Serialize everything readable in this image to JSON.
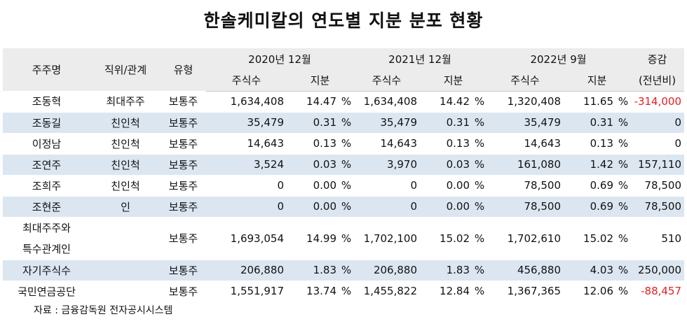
{
  "title": "한솔케미칼의 연도별 지분 분포 현황",
  "headers": {
    "shareholder": "주주명",
    "position": "직위/관계",
    "type": "유형",
    "period_2020": "2020년 12월",
    "period_2021": "2021년 12월",
    "period_2022": "2022년 9월",
    "change_line1": "증감",
    "change_line2": "(전년비)",
    "shares": "주식수",
    "stake": "지분"
  },
  "rows": [
    {
      "name": "조동혁",
      "position": "최대주주",
      "type": "보통주",
      "s2020": "1,634,408",
      "p2020": "14.47",
      "u2020": "%",
      "s2021": "1,634,408",
      "p2021": "14.42",
      "u2021": "%",
      "s2022": "1,320,408",
      "p2022": "11.65",
      "u2022": "%",
      "change": "-314,000"
    },
    {
      "name": "조동길",
      "position": "친인척",
      "type": "보통주",
      "s2020": "35,479",
      "p2020": "0.31",
      "u2020": "%",
      "s2021": "35,479",
      "p2021": "0.31",
      "u2021": "%",
      "s2022": "35,479",
      "p2022": "0.31",
      "u2022": "%",
      "change": "0"
    },
    {
      "name": "이정남",
      "position": "친인척",
      "type": "보통주",
      "s2020": "14,643",
      "p2020": "0.13",
      "u2020": "%",
      "s2021": "14,643",
      "p2021": "0.13",
      "u2021": "%",
      "s2022": "14,643",
      "p2022": "0.13",
      "u2022": "%",
      "change": "0"
    },
    {
      "name": "조연주",
      "position": "친인척",
      "type": "보통주",
      "s2020": "3,524",
      "p2020": "0.03",
      "u2020": "%",
      "s2021": "3,970",
      "p2021": "0.03",
      "u2021": "%",
      "s2022": "161,080",
      "p2022": "1.42",
      "u2022": "%",
      "change": "157,110"
    },
    {
      "name": "조희주",
      "position": "친인척",
      "type": "보통주",
      "s2020": "0",
      "p2020": "0.00",
      "u2020": "%",
      "s2021": "0",
      "p2021": "0.00",
      "u2021": "%",
      "s2022": "78,500",
      "p2022": "0.69",
      "u2022": "%",
      "change": "78,500"
    },
    {
      "name": "조현준",
      "position": "인",
      "type": "보통주",
      "s2020": "0",
      "p2020": "0.00",
      "u2020": "%",
      "s2021": "0",
      "p2021": "0.00",
      "u2021": "%",
      "s2022": "78,500",
      "p2022": "0.69",
      "u2022": "%",
      "change": "78,500"
    },
    {
      "name_line1": "최대주주와",
      "name_line2": "특수관계인",
      "position": "",
      "type": "보통주",
      "s2020": "1,693,054",
      "p2020": "14.99",
      "u2020": "%",
      "s2021": "1,702,100",
      "p2021": "15.02",
      "u2021": "%",
      "s2022": "1,702,610",
      "p2022": "15.02",
      "u2022": "%",
      "change": "510"
    },
    {
      "name": "자기주식수",
      "position": "",
      "type": "보통주",
      "s2020": "206,880",
      "p2020": "1.83",
      "u2020": "%",
      "s2021": "206,880",
      "p2021": "1.83",
      "u2021": "%",
      "s2022": "456,880",
      "p2022": "4.03",
      "u2022": "%",
      "change": "250,000"
    },
    {
      "name": "국민연금공단",
      "position": "",
      "type": "보통주",
      "s2020": "1,551,917",
      "p2020": "13.74",
      "u2020": "%",
      "s2021": "1,455,822",
      "p2021": "12.84",
      "u2021": "%",
      "s2022": "1,367,365",
      "p2022": "12.06",
      "u2022": "%",
      "change": "-88,457"
    }
  ],
  "source": "자료 : 금융감독원 전자공시시스템",
  "colors": {
    "header_bg": "#ececec",
    "alt_row_bg": "#dce6f1",
    "negative": "#e02020"
  }
}
